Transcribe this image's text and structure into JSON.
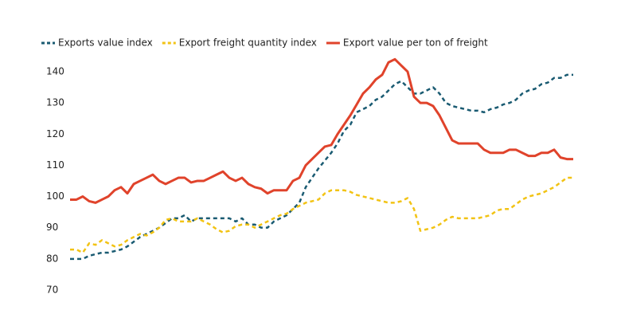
{
  "chart_data": {
    "type": "line",
    "categories": [
      null,
      null,
      null,
      null,
      null,
      null,
      null,
      null,
      null,
      null,
      null,
      null,
      null,
      null,
      null,
      null,
      null,
      null,
      null,
      null,
      null,
      null,
      null,
      null,
      null,
      null,
      null,
      null,
      null,
      null,
      null,
      null,
      null,
      null,
      null,
      null,
      null,
      null,
      null,
      null,
      null,
      null,
      null,
      null,
      null,
      null,
      null,
      null,
      null,
      null,
      null,
      null,
      null,
      null,
      null,
      null,
      null,
      null,
      null,
      null,
      null,
      null,
      null,
      null,
      null,
      null,
      null,
      null,
      null,
      null,
      null,
      null,
      null,
      null,
      null,
      null,
      null,
      null,
      null,
      null
    ],
    "series": [
      {
        "name": "Exports value index",
        "color": "#1a5b72",
        "dash": true,
        "values": [
          80,
          80,
          80,
          81,
          81.5,
          82,
          82,
          82.5,
          83,
          84,
          85.5,
          87,
          88,
          89,
          90,
          91.5,
          93,
          93,
          94,
          92,
          93,
          93,
          93,
          93,
          93,
          93,
          92,
          93,
          91,
          91,
          90,
          90,
          92,
          93,
          94,
          96,
          98,
          103,
          106,
          109,
          111.5,
          114,
          117,
          121,
          123,
          127,
          128,
          129,
          131,
          132,
          134,
          136,
          137,
          135,
          133,
          133,
          134,
          135,
          133,
          130,
          129,
          128.5,
          128,
          127.5,
          127.5,
          127,
          128,
          128.5,
          129.5,
          130,
          131,
          133,
          134,
          134.5,
          136,
          136.5,
          138,
          138,
          139,
          139
        ]
      },
      {
        "name": "Export freight quantity index",
        "color": "#f2c314",
        "dash": true,
        "values": [
          83,
          83,
          82,
          85,
          84.5,
          86,
          85,
          84,
          84.5,
          86,
          87,
          88,
          87.5,
          88.5,
          90,
          92.5,
          93,
          92,
          92,
          92,
          93,
          92,
          91,
          89.5,
          88.5,
          89,
          90.5,
          91,
          91,
          90,
          91,
          92,
          93,
          94,
          94.5,
          96,
          97,
          98,
          98.5,
          99,
          101,
          102,
          102,
          102,
          101.5,
          100.5,
          100,
          99.5,
          99,
          98.5,
          98,
          98,
          98.5,
          99.5,
          96,
          89,
          89.5,
          90,
          91,
          92.5,
          93.5,
          93,
          93,
          93,
          93,
          93.5,
          94,
          95.5,
          96,
          96,
          97.5,
          99,
          100,
          100.5,
          101,
          102,
          103,
          104.5,
          106,
          106
        ]
      },
      {
        "name": "Export value per ton of freight",
        "color": "#e0432b",
        "dash": false,
        "values": [
          99,
          99,
          100,
          98.5,
          98,
          99,
          100,
          102,
          103,
          101,
          104,
          105,
          106,
          107,
          105,
          104,
          105,
          106,
          106,
          104.5,
          105,
          105,
          106,
          107,
          108,
          106,
          105,
          106,
          104,
          103,
          102.5,
          101,
          102,
          102,
          102,
          105,
          106,
          110,
          112,
          114,
          116,
          116.5,
          120,
          123,
          126,
          129.5,
          133,
          135,
          137.5,
          139,
          143,
          144,
          142,
          140,
          132,
          130,
          130,
          129,
          126,
          122,
          118,
          117,
          117,
          117,
          117,
          115,
          114,
          114,
          114,
          115,
          115,
          114,
          113,
          113,
          114,
          114,
          115,
          112.5,
          112,
          112
        ]
      }
    ],
    "ylim": [
      67,
      145
    ],
    "yticks": [
      70,
      80,
      90,
      100,
      110,
      120,
      130,
      140
    ],
    "grid": false
  }
}
